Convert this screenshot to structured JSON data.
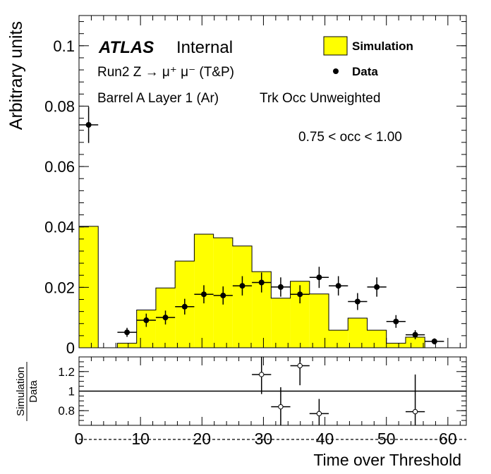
{
  "chart_data": [
    {
      "type": "bar",
      "panel": "main",
      "ylabel": "Arbitrary units",
      "xlim": [
        0,
        63
      ],
      "ylim": [
        0,
        0.11
      ],
      "yticks": [
        "0",
        "0.02",
        "0.04",
        "0.06",
        "0.08",
        "0.1"
      ],
      "labels": {
        "atlas": "ATLAS",
        "internal": "Internal",
        "process": "Run2 Z → μ⁺ μ⁻ (T&P)",
        "region": "Barrel A Layer 1 (Ar)",
        "weighting": "Trk Occ Unweighted",
        "cut": "0.75 < occ < 1.00"
      },
      "legend_position": "top-right",
      "series": [
        {
          "name": "Simulation",
          "style": "filled-histogram",
          "color": "#ffff00",
          "bin_edges": [
            0,
            3.125,
            6.25,
            9.375,
            12.5,
            15.625,
            18.75,
            21.875,
            25,
            28.125,
            31.25,
            34.375,
            37.5,
            40.625,
            43.75,
            46.875,
            50,
            53.125,
            56.25,
            59.375
          ],
          "values": [
            0.0402,
            0.0,
            0.0015,
            0.0125,
            0.0198,
            0.0287,
            0.0376,
            0.0364,
            0.0337,
            0.0252,
            0.0164,
            0.022,
            0.0178,
            0.0058,
            0.0098,
            0.0058,
            0.0015,
            0.0035,
            0.0
          ]
        },
        {
          "name": "Data",
          "style": "markers",
          "color": "#000000",
          "x": [
            1.56,
            7.81,
            10.94,
            14.06,
            17.19,
            20.31,
            23.44,
            26.56,
            29.69,
            32.81,
            35.94,
            39.06,
            42.19,
            45.31,
            48.44,
            51.56,
            54.69,
            57.81
          ],
          "y": [
            0.0738,
            0.0051,
            0.0091,
            0.01,
            0.0136,
            0.0177,
            0.0173,
            0.0205,
            0.0216,
            0.0201,
            0.0177,
            0.0233,
            0.0205,
            0.0153,
            0.0201,
            0.0087,
            0.0043,
            0.0021
          ],
          "yerr": [
            0.006,
            0.0015,
            0.0022,
            0.0023,
            0.0026,
            0.003,
            0.003,
            0.0032,
            0.0033,
            0.0032,
            0.003,
            0.0035,
            0.0032,
            0.0028,
            0.0032,
            0.0021,
            0.0015,
            0.001
          ]
        }
      ]
    },
    {
      "type": "scatter",
      "panel": "ratio",
      "ylabel_numerator": "Simulation",
      "ylabel_denominator": "Data",
      "xlabel": "Time over Threshold",
      "xlim": [
        0,
        63
      ],
      "ylim": [
        0.65,
        1.35
      ],
      "yticks": [
        "0.8",
        "1",
        "1.2"
      ],
      "xticks": [
        "0",
        "10",
        "20",
        "30",
        "40",
        "50",
        "60"
      ],
      "reference_line": 1,
      "series": [
        {
          "name": "",
          "style": "open-markers",
          "x": [
            29.69,
            32.81,
            35.94,
            39.06,
            54.69
          ],
          "y": [
            1.17,
            0.84,
            1.26,
            0.77,
            0.79
          ],
          "yerr": [
            0.2,
            0.2,
            0.2,
            0.15,
            0.38
          ]
        }
      ]
    }
  ]
}
